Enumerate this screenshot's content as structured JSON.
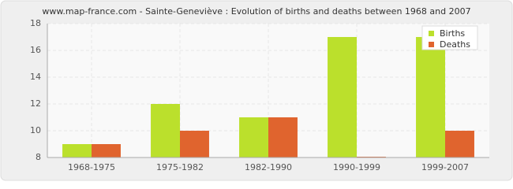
{
  "chart_data": {
    "type": "bar",
    "title": "www.map-france.com - Sainte-Geneviève : Evolution of births and deaths between 1968 and 2007",
    "categories": [
      "1968-1975",
      "1975-1982",
      "1982-1990",
      "1990-1999",
      "1999-2007"
    ],
    "series": [
      {
        "name": "Births",
        "color": "#bbe02c",
        "values": [
          9,
          12,
          11,
          17,
          17
        ]
      },
      {
        "name": "Deaths",
        "color": "#e0642e",
        "values": [
          9,
          10,
          11,
          8,
          10
        ]
      }
    ],
    "ylim": [
      8,
      18
    ],
    "yticks": [
      8,
      10,
      12,
      14,
      16,
      18
    ],
    "grid": true,
    "legend": "top-right"
  }
}
